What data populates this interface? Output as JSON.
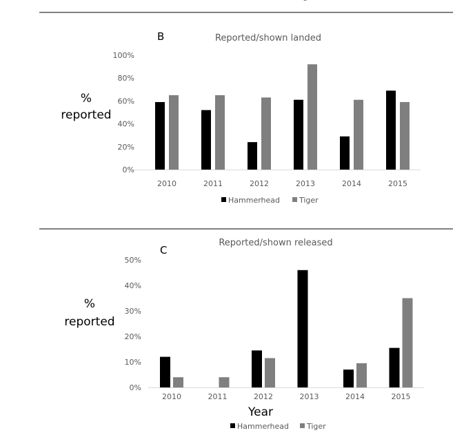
{
  "top_legend": {
    "labels": [
      "Hammerhead",
      "Tiger"
    ]
  },
  "colors": {
    "Hammerhead": "#000000",
    "Tiger": "#7f7f7f"
  },
  "chart_data": [
    {
      "type": "bar",
      "panel_label": "B",
      "title": "Reported/shown landed",
      "ylabel": "% reported",
      "ylabel_lines": [
        "%",
        "reported"
      ],
      "xlabel": "",
      "categories": [
        "2010",
        "2011",
        "2012",
        "2013",
        "2014",
        "2015"
      ],
      "ylim": [
        0,
        100
      ],
      "yticks": [
        "0%",
        "20%",
        "40%",
        "60%",
        "80%",
        "100%"
      ],
      "grid": false,
      "legend": "bottom",
      "series": [
        {
          "name": "Hammerhead",
          "values": [
            59,
            52,
            24,
            61,
            29,
            69
          ]
        },
        {
          "name": "Tiger",
          "values": [
            65,
            65,
            63,
            92,
            61,
            59
          ]
        }
      ]
    },
    {
      "type": "bar",
      "panel_label": "C",
      "title": "Reported/shown released",
      "ylabel": "% reported",
      "ylabel_lines": [
        "%",
        "reported"
      ],
      "xlabel": "Year",
      "categories": [
        "2010",
        "2011",
        "2012",
        "2013",
        "2014",
        "2015"
      ],
      "ylim": [
        0,
        50
      ],
      "yticks": [
        "0%",
        "10%",
        "20%",
        "30%",
        "40%",
        "50%"
      ],
      "grid": false,
      "legend": "bottom",
      "series": [
        {
          "name": "Hammerhead",
          "values": [
            12,
            0,
            14.5,
            46,
            7,
            15.5
          ]
        },
        {
          "name": "Tiger",
          "values": [
            4,
            4,
            11.5,
            0,
            9.5,
            35
          ]
        }
      ]
    }
  ]
}
